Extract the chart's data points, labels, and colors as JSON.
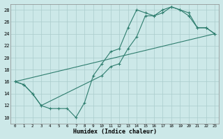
{
  "xlabel": "Humidex (Indice chaleur)",
  "xlim": [
    -0.5,
    23.5
  ],
  "ylim": [
    9,
    29
  ],
  "xticks": [
    0,
    1,
    2,
    3,
    4,
    5,
    6,
    7,
    8,
    9,
    10,
    11,
    12,
    13,
    14,
    15,
    16,
    17,
    18,
    19,
    20,
    21,
    22,
    23
  ],
  "yticks": [
    10,
    12,
    14,
    16,
    18,
    20,
    22,
    24,
    26,
    28
  ],
  "background_color": "#cce8e8",
  "grid_color": "#aacccc",
  "line_color": "#2e7d6e",
  "line1_x": [
    0,
    1,
    2,
    3,
    4,
    5,
    6,
    7,
    8,
    9,
    10,
    11,
    12,
    13,
    14,
    15,
    16,
    17,
    18,
    19,
    20,
    21,
    22,
    23
  ],
  "line1_y": [
    16.0,
    15.5,
    14.0,
    12.0,
    11.5,
    11.5,
    11.5,
    10.0,
    12.5,
    17.0,
    19.0,
    21.0,
    21.5,
    25.0,
    28.0,
    27.5,
    27.0,
    28.0,
    28.5,
    28.0,
    27.0,
    25.0,
    25.0,
    24.0
  ],
  "line2_x": [
    0,
    1,
    2,
    3,
    10,
    11,
    12,
    13,
    14,
    15,
    16,
    17,
    18,
    19,
    20,
    21,
    22,
    23
  ],
  "line2_y": [
    16.0,
    15.5,
    14.0,
    12.0,
    17.0,
    18.5,
    19.0,
    21.5,
    23.5,
    27.0,
    27.0,
    27.5,
    28.5,
    28.0,
    27.5,
    25.0,
    25.0,
    24.0
  ],
  "line3_x": [
    0,
    23
  ],
  "line3_y": [
    16.0,
    24.0
  ]
}
